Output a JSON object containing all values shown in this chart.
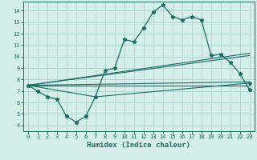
{
  "xlabel": "Humidex (Indice chaleur)",
  "bg_color": "#d4eeea",
  "grid_color": "#b0d8d0",
  "line_color": "#1a6e64",
  "x_ticks": [
    0,
    1,
    2,
    3,
    4,
    5,
    6,
    7,
    8,
    9,
    10,
    11,
    12,
    13,
    14,
    15,
    16,
    17,
    18,
    19,
    20,
    21,
    22,
    23
  ],
  "y_ticks": [
    4,
    5,
    6,
    7,
    8,
    9,
    10,
    11,
    12,
    13,
    14
  ],
  "ylim": [
    3.5,
    14.8
  ],
  "xlim": [
    -0.5,
    23.5
  ],
  "curve_x": [
    0,
    1,
    2,
    3,
    4,
    5,
    6,
    7,
    8,
    9,
    10,
    11,
    12,
    13,
    14,
    15,
    16,
    17,
    18,
    19,
    20,
    21,
    22,
    23
  ],
  "curve_y": [
    7.5,
    7.0,
    6.5,
    6.3,
    4.8,
    4.3,
    4.8,
    6.5,
    8.8,
    9.0,
    11.5,
    11.3,
    12.5,
    13.9,
    14.5,
    13.5,
    13.2,
    13.5,
    13.2,
    10.1,
    10.2,
    9.5,
    8.5,
    7.1
  ],
  "trend1_x": [
    0,
    23
  ],
  "trend1_y": [
    7.5,
    7.5
  ],
  "trend2_x": [
    0,
    23
  ],
  "trend2_y": [
    7.5,
    7.8
  ],
  "trend3_x": [
    0,
    7,
    23
  ],
  "trend3_y": [
    7.5,
    6.5,
    7.7
  ],
  "trend4_x": [
    0,
    23
  ],
  "trend4_y": [
    7.5,
    10.1
  ],
  "trend5_x": [
    0,
    23
  ],
  "trend5_y": [
    7.5,
    10.3
  ]
}
